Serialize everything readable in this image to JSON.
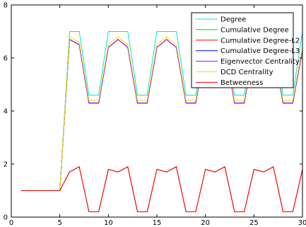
{
  "chart_data": {
    "type": "line",
    "title": "",
    "xlabel": "",
    "ylabel": "",
    "xlim": [
      0,
      30
    ],
    "ylim": [
      0,
      8
    ],
    "x_ticks": [
      0,
      5,
      10,
      15,
      20,
      25,
      30
    ],
    "y_ticks": [
      0,
      2,
      4,
      6,
      8
    ],
    "x_tick_labels": [
      "0",
      "5",
      "10",
      "15",
      "20",
      "25",
      "30"
    ],
    "y_tick_labels": [
      "0",
      "2",
      "4",
      "6",
      "8"
    ],
    "grid": false,
    "legend_position": "top-right",
    "series": [
      {
        "name": "Degree",
        "color": "#00e5e5",
        "x": [
          1,
          5,
          6,
          7,
          8,
          9,
          10,
          11,
          12,
          13,
          14,
          15,
          16,
          17,
          18,
          19,
          20,
          21,
          22,
          23,
          24,
          25,
          26,
          27,
          28,
          29,
          30
        ],
        "y": [
          1,
          1,
          7.0,
          7.0,
          4.6,
          4.6,
          7.0,
          7.0,
          7.0,
          4.6,
          4.6,
          7.0,
          7.0,
          7.0,
          4.6,
          4.6,
          7.0,
          7.0,
          7.0,
          4.6,
          4.6,
          7.0,
          7.0,
          7.0,
          4.6,
          4.6,
          7.0
        ]
      },
      {
        "name": "Cumulative Degree",
        "color": "#00cc00",
        "x": [
          1,
          5,
          6,
          7,
          8,
          9,
          10,
          11,
          12,
          13,
          14,
          15,
          16,
          17,
          18,
          19,
          20,
          21,
          22,
          23,
          24,
          25,
          26,
          27,
          28,
          29,
          30
        ],
        "y": [
          1,
          1,
          6.7,
          6.5,
          4.3,
          4.3,
          6.4,
          6.7,
          6.4,
          4.3,
          4.3,
          6.4,
          6.7,
          6.4,
          4.3,
          4.3,
          6.4,
          6.7,
          6.4,
          4.3,
          4.3,
          6.4,
          6.7,
          6.4,
          4.3,
          4.3,
          6.3
        ]
      },
      {
        "name": "Cumulative Degree-L2",
        "color": "#ff0000",
        "x": [
          1,
          5,
          6,
          7,
          8,
          9,
          10,
          11,
          12,
          13,
          14,
          15,
          16,
          17,
          18,
          19,
          20,
          21,
          22,
          23,
          24,
          25,
          26,
          27,
          28,
          29,
          30
        ],
        "y": [
          1,
          1,
          1.7,
          1.9,
          0.2,
          0.2,
          1.8,
          1.7,
          1.9,
          0.2,
          0.2,
          1.8,
          1.7,
          1.9,
          0.2,
          0.2,
          1.8,
          1.7,
          1.9,
          0.2,
          0.2,
          1.8,
          1.7,
          1.9,
          0.2,
          0.2,
          1.8
        ]
      },
      {
        "name": "Cumulative Degree-L3",
        "color": "#0000ff",
        "x": [
          1,
          5,
          6,
          7,
          8,
          9,
          10,
          11,
          12,
          13,
          14,
          15,
          16,
          17,
          18,
          19,
          20,
          21,
          22,
          23,
          24,
          25,
          26,
          27,
          28,
          29,
          30
        ],
        "y": [
          1,
          1,
          6.7,
          6.5,
          4.3,
          4.3,
          6.4,
          6.7,
          6.4,
          4.3,
          4.3,
          6.4,
          6.7,
          6.4,
          4.3,
          4.3,
          6.4,
          6.7,
          6.4,
          4.3,
          4.3,
          6.4,
          6.7,
          6.4,
          4.3,
          4.3,
          6.3
        ]
      },
      {
        "name": "Eigenvector Centrality",
        "color": "#cc00cc",
        "x": [
          1,
          5,
          6,
          7,
          8,
          9,
          10,
          11,
          12,
          13,
          14,
          15,
          16,
          17,
          18,
          19,
          20,
          21,
          22,
          23,
          24,
          25,
          26,
          27,
          28,
          29,
          30
        ],
        "y": [
          1,
          1,
          6.7,
          6.5,
          4.3,
          4.3,
          6.4,
          6.7,
          6.4,
          4.3,
          4.3,
          6.4,
          6.7,
          6.4,
          4.3,
          4.3,
          6.4,
          6.7,
          6.4,
          4.3,
          4.3,
          6.4,
          6.7,
          6.4,
          4.3,
          4.3,
          6.3
        ]
      },
      {
        "name": "DCD Centrality",
        "color": "#e5e500",
        "x": [
          1,
          5,
          6,
          7,
          8,
          9,
          10,
          11,
          12,
          13,
          14,
          15,
          16,
          17,
          18,
          19,
          20,
          21,
          22,
          23,
          24,
          25,
          26,
          27,
          28,
          29,
          30
        ],
        "y": [
          1,
          1,
          6.8,
          6.6,
          4.4,
          4.4,
          6.5,
          6.8,
          6.5,
          4.4,
          4.4,
          6.5,
          6.8,
          6.5,
          4.4,
          4.4,
          6.5,
          6.8,
          6.5,
          4.4,
          4.4,
          6.5,
          6.8,
          6.5,
          4.4,
          4.4,
          6.4
        ]
      },
      {
        "name": "Betweeness",
        "color": "#ee0000",
        "x": [
          1,
          5,
          6,
          7,
          8,
          9,
          10,
          11,
          12,
          13,
          14,
          15,
          16,
          17,
          18,
          19,
          20,
          21,
          22,
          23,
          24,
          25,
          26,
          27,
          28,
          29,
          30
        ],
        "y": [
          1,
          1,
          1.7,
          1.9,
          0.2,
          0.2,
          1.8,
          1.7,
          1.9,
          0.2,
          0.2,
          1.8,
          1.7,
          1.9,
          0.2,
          0.2,
          1.8,
          1.7,
          1.9,
          0.2,
          0.2,
          1.8,
          1.7,
          1.9,
          0.2,
          0.2,
          1.8
        ]
      }
    ]
  }
}
